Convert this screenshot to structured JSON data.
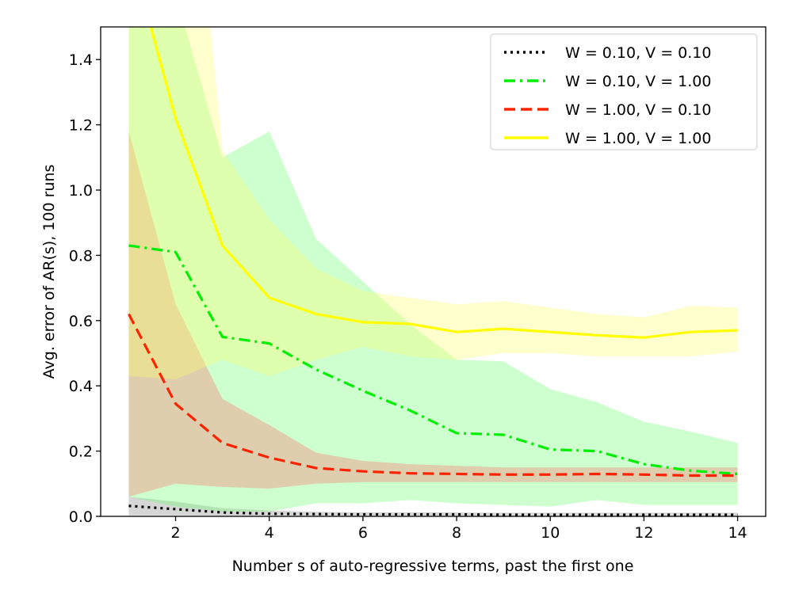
{
  "chart_data": {
    "type": "line",
    "title": "",
    "xlabel": "Number s of auto-regressive terms, past the first one",
    "ylabel": "Avg. error of AR(s), 100 runs",
    "xlim": [
      0.4,
      14.6
    ],
    "ylim": [
      0.0,
      1.5
    ],
    "x_ticks": [
      2,
      4,
      6,
      8,
      10,
      12,
      14
    ],
    "y_ticks": [
      0.0,
      0.2,
      0.4,
      0.6,
      0.8,
      1.0,
      1.2,
      1.4
    ],
    "grid": false,
    "legend_position": "top-right",
    "x": [
      1,
      2,
      3,
      4,
      5,
      6,
      7,
      8,
      9,
      10,
      11,
      12,
      13,
      14
    ],
    "series": [
      {
        "name": "W = 0.10, V = 0.10",
        "color": "#000000",
        "line_style": "dotted",
        "band_color": "#808080",
        "values": [
          0.032,
          0.022,
          0.012,
          0.008,
          0.007,
          0.006,
          0.006,
          0.006,
          0.005,
          0.005,
          0.005,
          0.005,
          0.005,
          0.005
        ],
        "lower": [
          0.003,
          0.003,
          0.002,
          0.002,
          0.002,
          0.002,
          0.002,
          0.002,
          0.002,
          0.002,
          0.002,
          0.002,
          0.002,
          0.002
        ],
        "upper": [
          0.06,
          0.045,
          0.025,
          0.018,
          0.014,
          0.012,
          0.012,
          0.012,
          0.011,
          0.011,
          0.011,
          0.011,
          0.011,
          0.011
        ]
      },
      {
        "name": "W = 0.10, V = 1.00",
        "color": "#00ee00",
        "line_style": "dashdot",
        "band_color": "#66ff66",
        "values": [
          0.83,
          0.81,
          0.55,
          0.53,
          0.45,
          0.385,
          0.325,
          0.255,
          0.25,
          0.205,
          0.2,
          0.16,
          0.14,
          0.13
        ],
        "lower": [
          0.06,
          0.03,
          0.015,
          0.015,
          0.04,
          0.04,
          0.05,
          0.04,
          0.035,
          0.03,
          0.05,
          0.035,
          0.035,
          0.035
        ],
        "upper": [
          1.6,
          1.6,
          1.1,
          1.18,
          0.85,
          0.72,
          0.59,
          0.48,
          0.475,
          0.39,
          0.35,
          0.29,
          0.26,
          0.225
        ]
      },
      {
        "name": "W = 1.00, V = 0.10",
        "color": "#ff2200",
        "line_style": "dashed",
        "band_color": "#ff6666",
        "values": [
          0.62,
          0.345,
          0.225,
          0.18,
          0.148,
          0.138,
          0.132,
          0.13,
          0.128,
          0.128,
          0.13,
          0.128,
          0.125,
          0.125
        ],
        "lower": [
          0.06,
          0.1,
          0.09,
          0.085,
          0.1,
          0.105,
          0.105,
          0.105,
          0.105,
          0.105,
          0.105,
          0.105,
          0.105,
          0.105
        ],
        "upper": [
          1.18,
          0.65,
          0.36,
          0.28,
          0.195,
          0.17,
          0.16,
          0.155,
          0.15,
          0.15,
          0.15,
          0.15,
          0.15,
          0.15
        ]
      },
      {
        "name": "W = 1.00, V = 1.00",
        "color": "#ffff00",
        "line_style": "solid",
        "band_color": "#ffff66",
        "values": [
          1.75,
          1.22,
          0.83,
          0.67,
          0.62,
          0.595,
          0.59,
          0.565,
          0.575,
          0.565,
          0.555,
          0.548,
          0.565,
          0.57
        ],
        "lower": [
          0.43,
          0.42,
          0.48,
          0.43,
          0.48,
          0.52,
          0.49,
          0.48,
          0.5,
          0.5,
          0.49,
          0.49,
          0.49,
          0.505
        ],
        "upper": [
          3.2,
          2.6,
          1.12,
          0.91,
          0.76,
          0.69,
          0.67,
          0.65,
          0.66,
          0.64,
          0.62,
          0.61,
          0.645,
          0.64
        ]
      }
    ]
  }
}
